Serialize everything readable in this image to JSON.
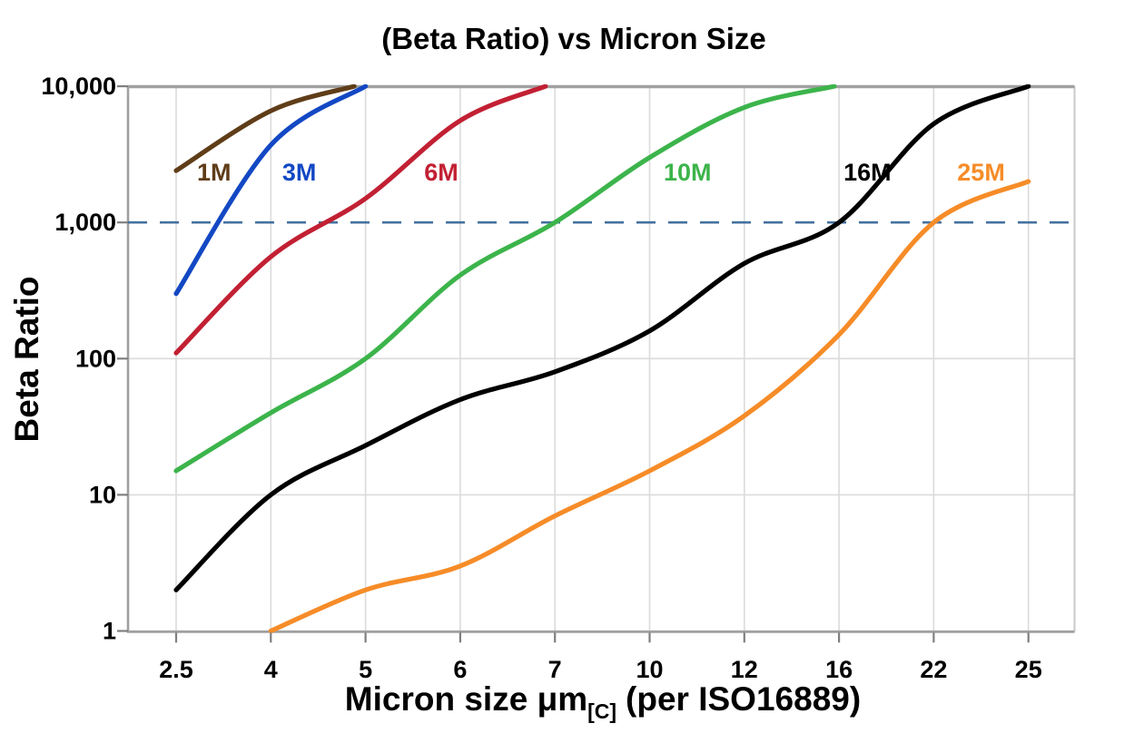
{
  "chart": {
    "title": "(Beta Ratio) vs Micron Size",
    "ylabel": "Beta Ratio",
    "xlabel_main": "Micron size μm",
    "xlabel_sub": "[C]",
    "xlabel_rest": "(per ISO16889)"
  },
  "chart_data": {
    "type": "line",
    "title": "(Beta Ratio) vs Micron Size",
    "xlabel": "Micron size μm[C] (per ISO16889)",
    "ylabel": "Beta Ratio",
    "x_scale": "equal-spaced-ticks",
    "y_scale": "log",
    "grid": true,
    "x_ticks": [
      2.5,
      4,
      5,
      6,
      7,
      10,
      12,
      16,
      22,
      25
    ],
    "x_tick_labels": [
      "2.5",
      "4",
      "5",
      "6",
      "7",
      "10",
      "12",
      "16",
      "22",
      "25"
    ],
    "y_ticks": [
      1,
      10,
      100,
      1000,
      10000
    ],
    "y_tick_labels": [
      "1",
      "10",
      "100",
      "1,000",
      "10,000"
    ],
    "ylim": [
      1,
      10000
    ],
    "reference_line": {
      "value": 1000,
      "style": "dashed",
      "color": "#44719F"
    },
    "colors": {
      "grid": "#DBDBDB",
      "frame": "#A0A0A0",
      "tick": "#7F7F7F",
      "text": "#000000"
    },
    "series": [
      {
        "name": "1M",
        "color": "#5F3D18",
        "label_at": {
          "x": 3.1,
          "y": 2330
        },
        "points": [
          [
            2.5,
            2400
          ],
          [
            4,
            6600
          ],
          [
            4.88,
            10000
          ]
        ]
      },
      {
        "name": "3M",
        "color": "#1348C4",
        "label_at": {
          "x": 4.3,
          "y": 2330
        },
        "points": [
          [
            2.5,
            300
          ],
          [
            4,
            3700
          ],
          [
            5,
            10000
          ]
        ]
      },
      {
        "name": "6M",
        "color": "#C22033",
        "label_at": {
          "x": 5.8,
          "y": 2330
        },
        "points": [
          [
            2.5,
            110
          ],
          [
            4,
            560
          ],
          [
            5,
            1500
          ],
          [
            6,
            5600
          ],
          [
            6.9,
            10000
          ]
        ]
      },
      {
        "name": "10M",
        "color": "#3CB44B",
        "label_at": {
          "x": 10.8,
          "y": 2330
        },
        "points": [
          [
            2.5,
            15
          ],
          [
            4,
            40
          ],
          [
            5,
            100
          ],
          [
            6,
            410
          ],
          [
            7,
            1000
          ],
          [
            10,
            3000
          ],
          [
            12,
            7000
          ],
          [
            15.8,
            10000
          ]
        ]
      },
      {
        "name": "16M",
        "color": "#000000",
        "label_at": {
          "x": 17.8,
          "y": 2330
        },
        "points": [
          [
            2.5,
            2
          ],
          [
            4,
            10
          ],
          [
            5,
            23
          ],
          [
            6,
            50
          ],
          [
            7,
            80
          ],
          [
            10,
            160
          ],
          [
            12,
            500
          ],
          [
            16,
            1000
          ],
          [
            22,
            5300
          ],
          [
            25,
            10000
          ]
        ]
      },
      {
        "name": "25M",
        "color": "#F68C28",
        "label_at": {
          "x": 23.5,
          "y": 2330
        },
        "points": [
          [
            4,
            1
          ],
          [
            5,
            2
          ],
          [
            6,
            3
          ],
          [
            7,
            7
          ],
          [
            10,
            15
          ],
          [
            12,
            38
          ],
          [
            16,
            150
          ],
          [
            22,
            1000
          ],
          [
            25,
            2000
          ]
        ]
      }
    ]
  }
}
